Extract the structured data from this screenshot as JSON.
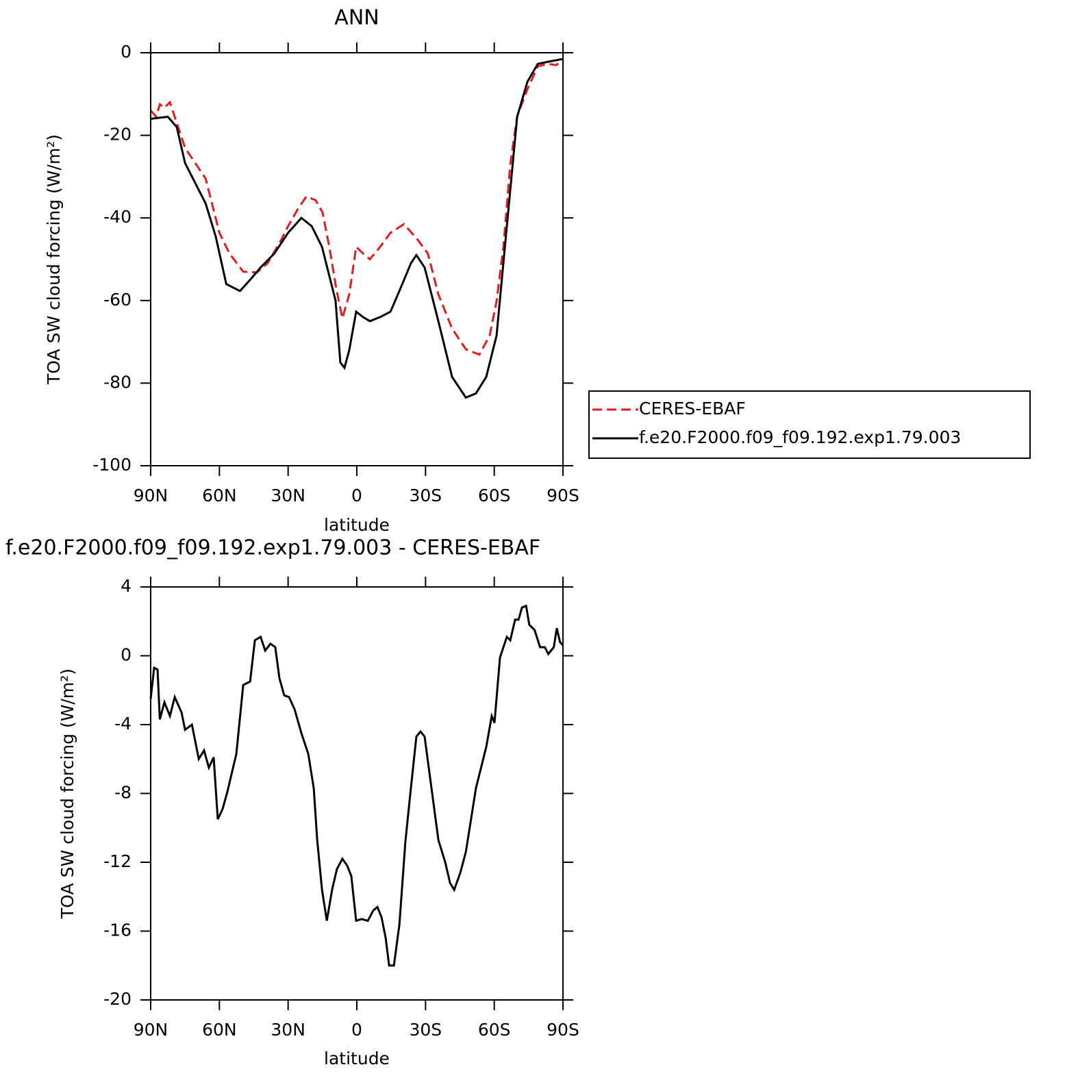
{
  "chart_data": [
    {
      "type": "line",
      "title": "ANN",
      "xlabel": "latitude",
      "ylabel": "TOA SW cloud forcing (W/m²)",
      "xlim": [
        90,
        -90
      ],
      "ylim": [
        -100,
        0
      ],
      "xticks": [
        {
          "value": 90,
          "label": "90N"
        },
        {
          "value": 60,
          "label": "60N"
        },
        {
          "value": 30,
          "label": "30N"
        },
        0,
        {
          "value": -30,
          "label": "30S"
        },
        {
          "value": -60,
          "label": "60S"
        },
        {
          "value": -90,
          "label": "90S"
        }
      ],
      "yticks": [
        -100,
        -80,
        -60,
        -40,
        -20,
        0
      ],
      "series": [
        {
          "name": "CERES-EBAF",
          "color": "#e41a1c",
          "linestyle": "dashed",
          "x": [
            90,
            87.6,
            86,
            84,
            81.6,
            79.5,
            75,
            69,
            66,
            63,
            60,
            55.6,
            49.6,
            43.6,
            39,
            33,
            30,
            25.7,
            22,
            18,
            15,
            12,
            9,
            6.3,
            3.3,
            0.3,
            -2.7,
            -5.7,
            -10.2,
            -14.7,
            -20.6,
            -26.6,
            -31,
            -35.6,
            -41.6,
            -47.6,
            -53.5,
            -58,
            -61,
            -64,
            -67,
            -70,
            -74.5,
            -79,
            -83.4,
            -87,
            -90
          ],
          "values": [
            -14,
            -15.5,
            -12.5,
            -13.3,
            -12,
            -15.5,
            -23,
            -28,
            -30.5,
            -37,
            -43.6,
            -48.6,
            -53,
            -53.2,
            -51,
            -45.3,
            -42,
            -37.8,
            -34.8,
            -35.7,
            -38.6,
            -47,
            -57,
            -64.3,
            -58.5,
            -47,
            -48.6,
            -50,
            -47,
            -43.6,
            -41.5,
            -45.3,
            -48.6,
            -58.5,
            -66.8,
            -71.8,
            -73.1,
            -68.5,
            -60.2,
            -47,
            -27,
            -15.4,
            -8.8,
            -3.3,
            -2.7,
            -3,
            -1.8
          ]
        },
        {
          "name": "f.e20.F2000.f09_f09.192.exp1.79.003",
          "color": "#000000",
          "linestyle": "solid",
          "x": [
            90,
            82.5,
            78.6,
            75,
            66,
            61.6,
            57,
            51,
            46.6,
            42,
            36,
            30,
            24.2,
            19.7,
            15.2,
            9.3,
            7.2,
            5.4,
            3.3,
            0.3,
            -2.7,
            -5.7,
            -10.2,
            -14.7,
            -19.1,
            -23.6,
            -26,
            -29.6,
            -35.6,
            -41.6,
            -47.6,
            -52,
            -56.5,
            -61,
            -65.5,
            -70,
            -74.5,
            -79,
            -83.4,
            -90
          ],
          "values": [
            -16,
            -15.5,
            -18,
            -26.7,
            -36.5,
            -44.5,
            -56,
            -57.7,
            -55,
            -52,
            -48.6,
            -43.6,
            -40,
            -42,
            -47,
            -60,
            -75,
            -76.3,
            -72,
            -62.7,
            -64,
            -65,
            -64,
            -62.7,
            -57,
            -51,
            -49,
            -52,
            -65,
            -78.5,
            -83.5,
            -82.5,
            -78.5,
            -68.5,
            -42,
            -15.5,
            -7,
            -2.7,
            -2.2,
            -1.5
          ]
        }
      ]
    },
    {
      "type": "line",
      "title": "f.e20.F2000.f09_f09.192.exp1.79.003 - CERES-EBAF",
      "xlabel": "latitude",
      "ylabel": "TOA SW cloud forcing (W/m²)",
      "xlim": [
        90,
        -90
      ],
      "ylim": [
        -20,
        4
      ],
      "xticks": [
        {
          "value": 90,
          "label": "90N"
        },
        {
          "value": 60,
          "label": "60N"
        },
        {
          "value": 30,
          "label": "30N"
        },
        0,
        {
          "value": -30,
          "label": "30S"
        },
        {
          "value": -60,
          "label": "60S"
        },
        {
          "value": -90,
          "label": "90S"
        }
      ],
      "yticks": [
        -20,
        -16,
        -12,
        -8,
        -4,
        0,
        4
      ],
      "series": [
        {
          "color": "#000000",
          "linestyle": "solid",
          "x": [
            90,
            88.5,
            87,
            86,
            84,
            81.6,
            79.5,
            76.5,
            75,
            72,
            69,
            66.7,
            64.6,
            62.5,
            60.7,
            58.6,
            56.5,
            52.6,
            49.6,
            46.6,
            44.5,
            42,
            40,
            37.7,
            35.6,
            33.8,
            31.7,
            29.6,
            27.2,
            24.2,
            21.2,
            18.8,
            17.3,
            15.2,
            13.1,
            10.8,
            8.7,
            6.3,
            4.2,
            2.4,
            0.3,
            -2.1,
            -4.8,
            -7.2,
            -9,
            -10.8,
            -12.6,
            -14.1,
            -16.2,
            -18.6,
            -21.2,
            -23.6,
            -26,
            -27.8,
            -29.6,
            -32.6,
            -35.6,
            -38.6,
            -40.7,
            -42.5,
            -45.2,
            -47.6,
            -52,
            -56.5,
            -58.9,
            -60.1,
            -62.5,
            -65.5,
            -67,
            -69.1,
            -70.6,
            -72.1,
            -73.9,
            -75.3,
            -77.6,
            -80,
            -82.1,
            -83.6,
            -86,
            -87.3,
            -88.7,
            -90
          ],
          "values": [
            -2.5,
            -0.7,
            -0.8,
            -3.7,
            -2.7,
            -3.5,
            -2.4,
            -3.3,
            -4.3,
            -4,
            -6,
            -5.5,
            -6.5,
            -5.9,
            -9.5,
            -8.9,
            -7.9,
            -5.7,
            -1.7,
            -1.5,
            0.9,
            1.1,
            0.3,
            0.7,
            0.5,
            -1.3,
            -2.3,
            -2.4,
            -3.1,
            -4.5,
            -5.7,
            -7.7,
            -10.7,
            -13.6,
            -15.4,
            -13.6,
            -12.4,
            -11.8,
            -12.2,
            -12.8,
            -15.4,
            -15.3,
            -15.4,
            -14.8,
            -14.6,
            -15.2,
            -16.4,
            -18,
            -18,
            -15.6,
            -10.8,
            -7.7,
            -4.7,
            -4.4,
            -4.7,
            -7.7,
            -10.7,
            -12,
            -13.2,
            -13.6,
            -12.6,
            -11.4,
            -7.7,
            -5.3,
            -3.5,
            -3.9,
            -0.1,
            1.1,
            0.9,
            2.1,
            2.1,
            2.8,
            2.9,
            1.8,
            1.5,
            0.5,
            0.5,
            0.1,
            0.5,
            1.6,
            0.8,
            0.6
          ]
        }
      ]
    }
  ]
}
